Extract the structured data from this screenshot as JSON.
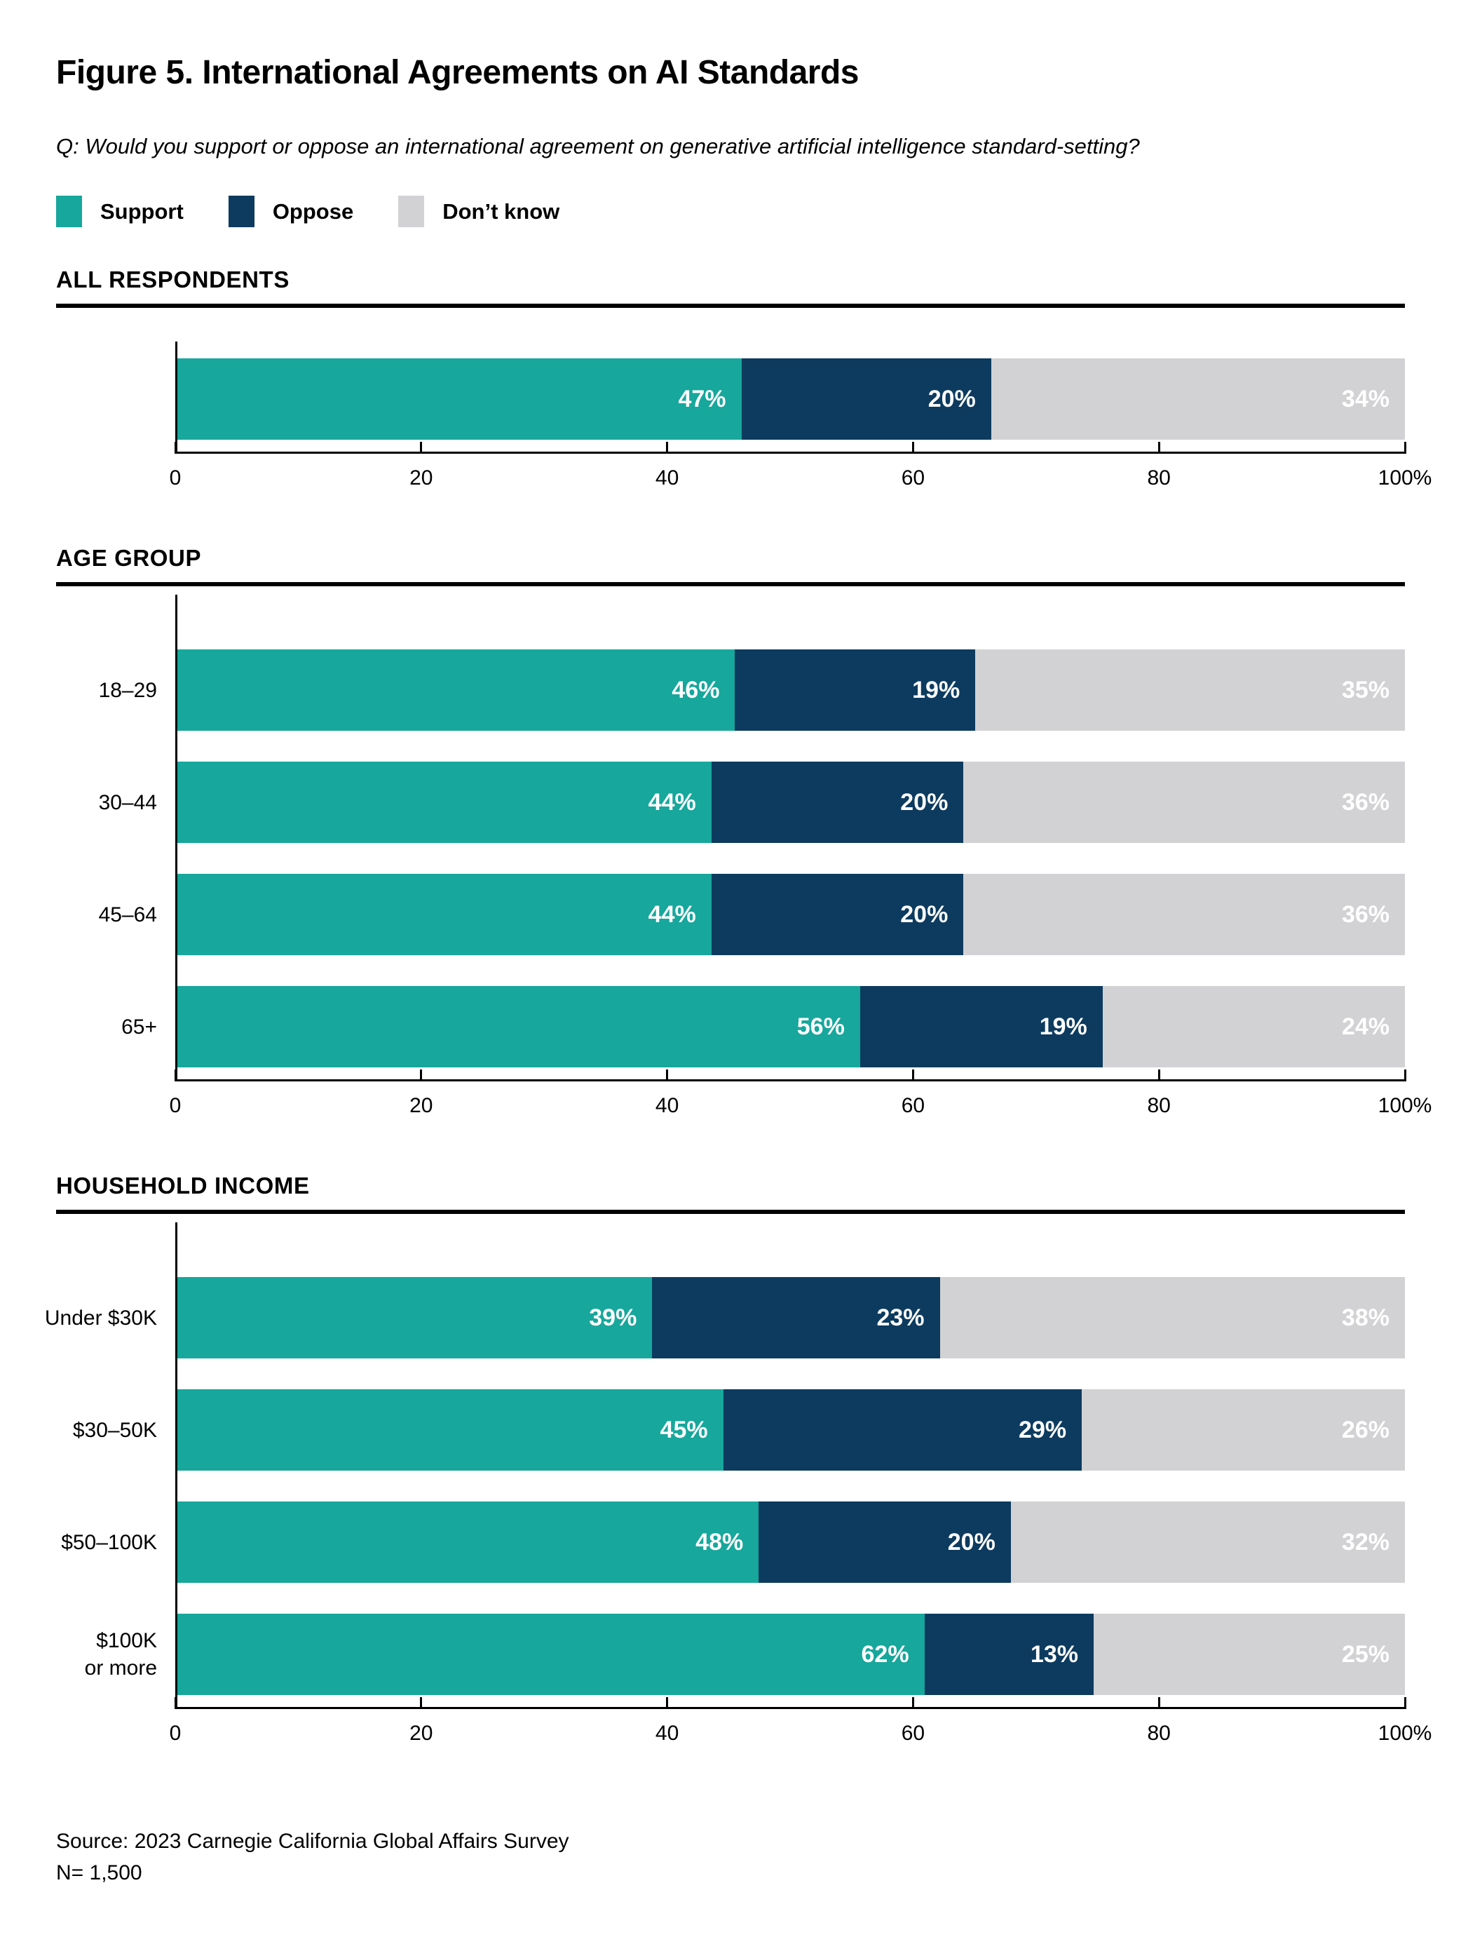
{
  "header": {
    "title": "Figure 5. International Agreements on AI Standards",
    "question": "Q: Would you support or oppose an international agreement on generative artificial intelligence standard-setting?"
  },
  "colors": {
    "support": "#17a79c",
    "oppose": "#0d3b5f",
    "dont_know": "#d2d2d4",
    "axis": "#000000",
    "bar_label_text": "#ffffff"
  },
  "legend": [
    {
      "label": "Support",
      "color_key": "support"
    },
    {
      "label": "Oppose",
      "color_key": "oppose"
    },
    {
      "label": "Don’t know",
      "color_key": "dont_know"
    }
  ],
  "chart_data": [
    {
      "type": "bar",
      "stacked": true,
      "orientation": "horizontal",
      "section": "ALL RESPONDENTS",
      "categories": [
        ""
      ],
      "series": [
        {
          "name": "Support",
          "color_key": "support",
          "values": [
            47
          ]
        },
        {
          "name": "Oppose",
          "color_key": "oppose",
          "values": [
            20
          ]
        },
        {
          "name": "Don’t know",
          "color_key": "dont_know",
          "values": [
            34
          ]
        }
      ],
      "legend_labels": [
        "Support",
        "Oppose",
        "Don’t know"
      ],
      "legend_position": "top",
      "grid": false,
      "xlabel": "",
      "ylabel": "",
      "xlim": [
        0,
        100
      ],
      "xticks": [
        "0",
        "20",
        "40",
        "60",
        "80",
        "100%"
      ],
      "value_suffix": "%"
    },
    {
      "type": "bar",
      "stacked": true,
      "orientation": "horizontal",
      "section": "AGE GROUP",
      "categories": [
        "18–29",
        "30–44",
        "45–64",
        "65+"
      ],
      "series": [
        {
          "name": "Support",
          "color_key": "support",
          "values": [
            46,
            44,
            44,
            56
          ]
        },
        {
          "name": "Oppose",
          "color_key": "oppose",
          "values": [
            19,
            20,
            20,
            19
          ]
        },
        {
          "name": "Don’t know",
          "color_key": "dont_know",
          "values": [
            35,
            36,
            36,
            24
          ]
        }
      ],
      "legend_labels": [
        "Support",
        "Oppose",
        "Don’t know"
      ],
      "legend_position": "top",
      "grid": false,
      "xlabel": "",
      "ylabel": "",
      "xlim": [
        0,
        100
      ],
      "xticks": [
        "0",
        "20",
        "40",
        "60",
        "80",
        "100%"
      ],
      "value_suffix": "%"
    },
    {
      "type": "bar",
      "stacked": true,
      "orientation": "horizontal",
      "section": "HOUSEHOLD INCOME",
      "categories": [
        "Under $30K",
        "$30–50K",
        "$50–100K",
        "$100K\nor more"
      ],
      "series": [
        {
          "name": "Support",
          "color_key": "support",
          "values": [
            39,
            45,
            48,
            62
          ]
        },
        {
          "name": "Oppose",
          "color_key": "oppose",
          "values": [
            23,
            29,
            20,
            13
          ]
        },
        {
          "name": "Don’t know",
          "color_key": "dont_know",
          "values": [
            38,
            26,
            32,
            25
          ]
        }
      ],
      "legend_labels": [
        "Support",
        "Oppose",
        "Don’t know"
      ],
      "legend_position": "top",
      "grid": false,
      "xlabel": "",
      "ylabel": "",
      "xlim": [
        0,
        100
      ],
      "xticks": [
        "0",
        "20",
        "40",
        "60",
        "80",
        "100%"
      ],
      "value_suffix": "%"
    }
  ],
  "footer": {
    "source": "Source: 2023 Carnegie California Global Affairs Survey",
    "n": "N= 1,500"
  }
}
